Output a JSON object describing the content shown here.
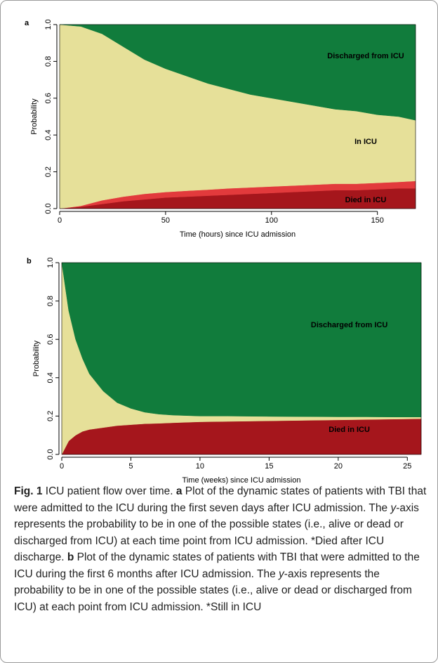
{
  "chart_data": [
    {
      "type": "area",
      "panel": "a",
      "xlabel": "Time (hours) since ICU admission",
      "ylabel": "Probability",
      "x": [
        0,
        10,
        20,
        30,
        40,
        50,
        60,
        70,
        80,
        90,
        100,
        110,
        120,
        130,
        140,
        150,
        160,
        168
      ],
      "series": [
        {
          "name": "Died in ICU",
          "color": "#a5161c",
          "values": [
            0,
            0.01,
            0.025,
            0.04,
            0.05,
            0.06,
            0.065,
            0.07,
            0.075,
            0.08,
            0.085,
            0.09,
            0.095,
            0.1,
            0.1,
            0.105,
            0.11,
            0.11
          ]
        },
        {
          "color": "#e23a3c",
          "values": [
            0,
            0.005,
            0.02,
            0.025,
            0.03,
            0.03,
            0.032,
            0.033,
            0.035,
            0.035,
            0.035,
            0.035,
            0.035,
            0.035,
            0.035,
            0.035,
            0.035,
            0.04
          ]
        },
        {
          "name": "In ICU",
          "color": "#e6e099",
          "values": [
            1,
            0.975,
            0.905,
            0.815,
            0.73,
            0.67,
            0.623,
            0.577,
            0.54,
            0.505,
            0.48,
            0.455,
            0.43,
            0.405,
            0.395,
            0.37,
            0.355,
            0.33
          ]
        },
        {
          "name": "Discharged from ICU",
          "color": "#117c3c",
          "values": [
            0,
            0.01,
            0.05,
            0.12,
            0.19,
            0.24,
            0.28,
            0.32,
            0.35,
            0.38,
            0.4,
            0.42,
            0.44,
            0.46,
            0.47,
            0.49,
            0.5,
            0.52
          ]
        }
      ],
      "xlim": [
        0,
        168
      ],
      "xticks": [
        0,
        50,
        100,
        150
      ],
      "ylim": [
        0,
        1
      ],
      "yticks": [
        {
          "value": 0,
          "label": "0.0"
        },
        0.2,
        0.4,
        0.6,
        0.8,
        {
          "value": 1,
          "label": "1.0"
        }
      ]
    },
    {
      "type": "area",
      "panel": "b",
      "xlabel": "Time (weeks) since ICU admission",
      "ylabel": "Probability",
      "x": [
        0,
        0.5,
        1,
        1.5,
        2,
        3,
        4,
        5,
        6,
        7,
        8,
        10,
        12,
        15,
        18,
        20,
        22,
        24,
        26
      ],
      "series": [
        {
          "name": "Died in ICU",
          "color": "#a5161c",
          "values": [
            0,
            0.07,
            0.1,
            0.12,
            0.13,
            0.14,
            0.15,
            0.155,
            0.16,
            0.162,
            0.165,
            0.17,
            0.172,
            0.175,
            0.178,
            0.18,
            0.182,
            0.184,
            0.186
          ]
        },
        {
          "color": "#e6e099",
          "values": [
            1,
            0.68,
            0.5,
            0.38,
            0.29,
            0.19,
            0.12,
            0.085,
            0.06,
            0.048,
            0.04,
            0.03,
            0.028,
            0.023,
            0.019,
            0.016,
            0.014,
            0.011,
            0.009
          ]
        },
        {
          "name": "Discharged from ICU",
          "color": "#117c3c",
          "values": [
            0,
            0.25,
            0.4,
            0.5,
            0.58,
            0.67,
            0.73,
            0.76,
            0.78,
            0.79,
            0.795,
            0.8,
            0.8,
            0.802,
            0.803,
            0.804,
            0.804,
            0.805,
            0.805
          ]
        }
      ],
      "xlim": [
        0,
        26
      ],
      "xticks": [
        0,
        5,
        10,
        15,
        20,
        25
      ],
      "ylim": [
        0,
        1
      ],
      "yticks": [
        {
          "value": 0,
          "label": "0.0"
        },
        0.2,
        0.4,
        0.6,
        0.8,
        {
          "value": 1,
          "label": "1.0"
        }
      ]
    }
  ],
  "caption": {
    "label": "Fig. 1",
    "parts": [
      {
        "text": " ICU patient flow over time. "
      },
      {
        "text": "a",
        "bold": true
      },
      {
        "text": " Plot of the dynamic states of patients with TBI that were admitted to the ICU during the first seven days after ICU admission. The "
      },
      {
        "text": "y",
        "italic": true
      },
      {
        "text": "-axis represents the probability to be in one of the possible states (i.e., alive or dead or discharged from ICU) at each time point from ICU admission. *Died after ICU discharge. "
      },
      {
        "text": "b",
        "bold": true
      },
      {
        "text": " Plot of the dynamic states of patients with TBI that were admitted to the ICU during the first 6 months after ICU admission. The "
      },
      {
        "text": "y",
        "italic": true
      },
      {
        "text": "-axis represents the probability to be in one of the possible states (i.e., alive or dead or discharged from ICU) at each point from ICU admission. *Still in ICU"
      }
    ]
  }
}
